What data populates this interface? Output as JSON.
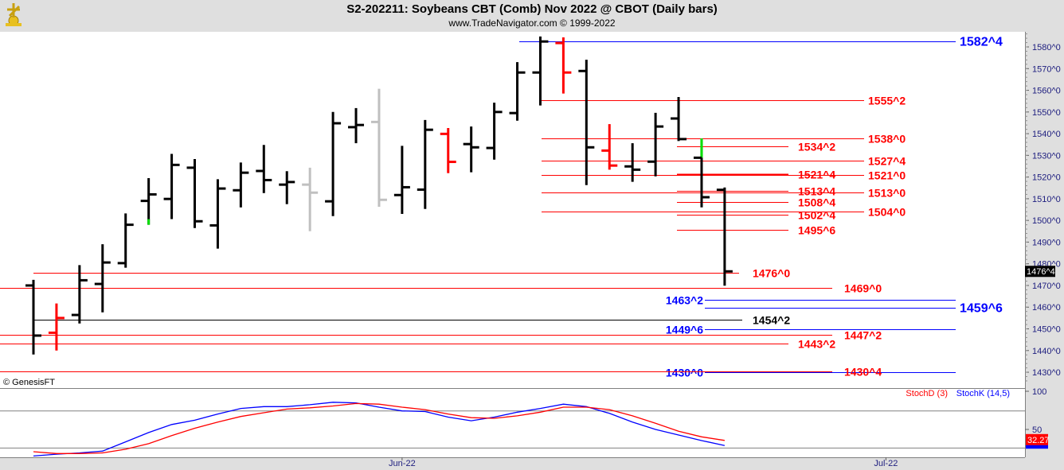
{
  "header": {
    "title": "S2-202211:  Soybeans CBT (Comb) Nov 2022 @ CBOT  (Daily bars)",
    "subtitle": "www.TradeNavigator.com © 1999-2022"
  },
  "copyright": "© GenesisFT",
  "chart_data": [
    {
      "type": "ohlc",
      "title": "S2-202211:  Soybeans CBT (Comb) Nov 2022 @ CBOT  (Daily bars)",
      "ylim": [
        1424,
        1587
      ],
      "y_ticks": [
        "1430^0",
        "1440^0",
        "1450^0",
        "1460^0",
        "1470^0",
        "1480^0",
        "1490^0",
        "1500^0",
        "1510^0",
        "1520^0",
        "1530^0",
        "1540^0",
        "1550^0",
        "1560^0",
        "1570^0",
        "1580^0"
      ],
      "x_ticks": [
        {
          "label": "Jun-22",
          "bar": 16
        },
        {
          "label": "Jul-22",
          "bar": 37
        }
      ],
      "last_price_label": "1476^4",
      "last_price": 1476.5,
      "colors": {
        "black": "#000000",
        "red": "#ff0000",
        "gray": "#c0c0c0",
        "green": "#00e000",
        "blue": "#0000ff"
      },
      "bars": [
        {
          "o": 1470.0,
          "h": 1472.6,
          "l": 1438.2,
          "c": 1446.9,
          "color": "black"
        },
        {
          "o": 1448.2,
          "h": 1461.7,
          "l": 1440.0,
          "c": 1455.0,
          "color": "red"
        },
        {
          "o": 1456.4,
          "h": 1479.4,
          "l": 1452.5,
          "c": 1472.4,
          "color": "black"
        },
        {
          "o": 1470.7,
          "h": 1489.0,
          "l": 1457.6,
          "c": 1480.6,
          "color": "black"
        },
        {
          "o": 1480.3,
          "h": 1503.2,
          "l": 1478.2,
          "c": 1498.0,
          "color": "black"
        },
        {
          "o": 1509.0,
          "h": 1519.5,
          "l": 1498.0,
          "c": 1512.0,
          "color": "black",
          "accent": {
            "from": 1498.0,
            "to": 1500.6,
            "color": "green"
          }
        },
        {
          "o": 1509.9,
          "h": 1530.7,
          "l": 1500.6,
          "c": 1525.6,
          "color": "black"
        },
        {
          "o": 1524.3,
          "h": 1528.3,
          "l": 1496.5,
          "c": 1499.6,
          "color": "black"
        },
        {
          "o": 1497.7,
          "h": 1519.0,
          "l": 1487.0,
          "c": 1514.7,
          "color": "black"
        },
        {
          "o": 1513.9,
          "h": 1526.7,
          "l": 1506.0,
          "c": 1522.0,
          "color": "black"
        },
        {
          "o": 1522.8,
          "h": 1534.8,
          "l": 1512.6,
          "c": 1518.6,
          "color": "black"
        },
        {
          "o": 1516.5,
          "h": 1522.7,
          "l": 1507.5,
          "c": 1517.7,
          "color": "black"
        },
        {
          "o": 1516.5,
          "h": 1524.3,
          "l": 1495.0,
          "c": 1512.8,
          "color": "gray"
        },
        {
          "o": 1508.8,
          "h": 1550.0,
          "l": 1502.0,
          "c": 1544.8,
          "color": "black"
        },
        {
          "o": 1543.0,
          "h": 1551.8,
          "l": 1535.6,
          "c": 1544.0,
          "color": "black"
        },
        {
          "o": 1545.4,
          "h": 1560.7,
          "l": 1506.3,
          "c": 1509.5,
          "color": "gray"
        },
        {
          "o": 1511.7,
          "h": 1534.4,
          "l": 1503.0,
          "c": 1515.3,
          "color": "black"
        },
        {
          "o": 1514.2,
          "h": 1546.3,
          "l": 1505.3,
          "c": 1541.8,
          "color": "black"
        },
        {
          "o": 1539.9,
          "h": 1542.6,
          "l": 1521.8,
          "c": 1527.0,
          "color": "red"
        },
        {
          "o": 1535.2,
          "h": 1543.3,
          "l": 1522.2,
          "c": 1533.7,
          "color": "black"
        },
        {
          "o": 1533.4,
          "h": 1554.3,
          "l": 1528.0,
          "c": 1550.0,
          "color": "black"
        },
        {
          "o": 1549.5,
          "h": 1573.0,
          "l": 1546.0,
          "c": 1568.2,
          "color": "black"
        },
        {
          "o": 1568.2,
          "h": 1584.8,
          "l": 1553.0,
          "c": 1582.5,
          "color": "black"
        },
        {
          "o": 1581.8,
          "h": 1584.4,
          "l": 1558.5,
          "c": 1568.2,
          "color": "red"
        },
        {
          "o": 1568.9,
          "h": 1574.1,
          "l": 1516.3,
          "c": 1533.7,
          "color": "black"
        },
        {
          "o": 1532.2,
          "h": 1544.4,
          "l": 1523.4,
          "c": 1525.3,
          "color": "red"
        },
        {
          "o": 1524.9,
          "h": 1535.6,
          "l": 1517.8,
          "c": 1523.4,
          "color": "black"
        },
        {
          "o": 1527.1,
          "h": 1549.6,
          "l": 1520.3,
          "c": 1543.3,
          "color": "black"
        },
        {
          "o": 1547.0,
          "h": 1556.9,
          "l": 1536.6,
          "c": 1537.5,
          "color": "black"
        },
        {
          "o": 1528.9,
          "h": 1537.8,
          "l": 1506.0,
          "c": 1510.7,
          "color": "black",
          "accent": {
            "from": 1528.9,
            "to": 1537.8,
            "color": "green"
          }
        },
        {
          "o": 1514.1,
          "h": 1515.2,
          "l": 1469.9,
          "c": 1476.5,
          "color": "black"
        }
      ],
      "levels": [
        {
          "label": "1582^4",
          "price": 1582.5,
          "color": "blue"
        },
        {
          "label": "1555^2",
          "price": 1555.25,
          "color": "red"
        },
        {
          "label": "1538^0",
          "price": 1538.0,
          "color": "red"
        },
        {
          "label": "1534^2",
          "price": 1534.25,
          "color": "red"
        },
        {
          "label": "1527^4",
          "price": 1527.5,
          "color": "red"
        },
        {
          "label": "1521^4",
          "price": 1521.5,
          "color": "red"
        },
        {
          "label": "1521^0",
          "price": 1521.0,
          "color": "red"
        },
        {
          "label": "1513^4",
          "price": 1513.5,
          "color": "red"
        },
        {
          "label": "1513^0",
          "price": 1513.0,
          "color": "red"
        },
        {
          "label": "1508^4",
          "price": 1508.5,
          "color": "red"
        },
        {
          "label": "1504^0",
          "price": 1504.0,
          "color": "red"
        },
        {
          "label": "1502^4",
          "price": 1502.5,
          "color": "red"
        },
        {
          "label": "1495^6",
          "price": 1495.75,
          "color": "red"
        },
        {
          "label": "1476^0",
          "price": 1476.0,
          "color": "red"
        },
        {
          "label": "1469^0",
          "price": 1469.0,
          "color": "red"
        },
        {
          "label": "1463^2",
          "price": 1463.25,
          "color": "blue"
        },
        {
          "label": "1459^6",
          "price": 1459.75,
          "color": "blue"
        },
        {
          "label": "1454^2",
          "price": 1454.25,
          "color": "black"
        },
        {
          "label": "1449^6",
          "price": 1449.75,
          "color": "blue"
        },
        {
          "label": "1447^2",
          "price": 1447.25,
          "color": "red"
        },
        {
          "label": "1443^2",
          "price": 1443.25,
          "color": "red"
        },
        {
          "label": "1430^0",
          "price": 1430.0,
          "color": "blue"
        },
        {
          "label": "1430^4",
          "price": 1430.5,
          "color": "red"
        }
      ]
    },
    {
      "type": "line",
      "y_ticks": [
        "100",
        "50"
      ],
      "reference_lines": [
        80,
        20
      ],
      "series": [
        {
          "name": "StochD (3)",
          "color": "#ff0000",
          "values": [
            14,
            11,
            11,
            12,
            18,
            27,
            40,
            52,
            62,
            71,
            77,
            83,
            85,
            88,
            92,
            91,
            86,
            82,
            75,
            69,
            68,
            72,
            78,
            86,
            86,
            82,
            72,
            60,
            47,
            38,
            32.27
          ]
        },
        {
          "name": "StochK (14,5)",
          "color": "#0000ff",
          "values": [
            7,
            10,
            12,
            15,
            30,
            45,
            58,
            65,
            75,
            84,
            87,
            87,
            90,
            94,
            93,
            86,
            80,
            79,
            70,
            64,
            70,
            78,
            84,
            91,
            87,
            76,
            62,
            50,
            41,
            32,
            24
          ]
        }
      ],
      "last_value_label": "32.27"
    }
  ]
}
